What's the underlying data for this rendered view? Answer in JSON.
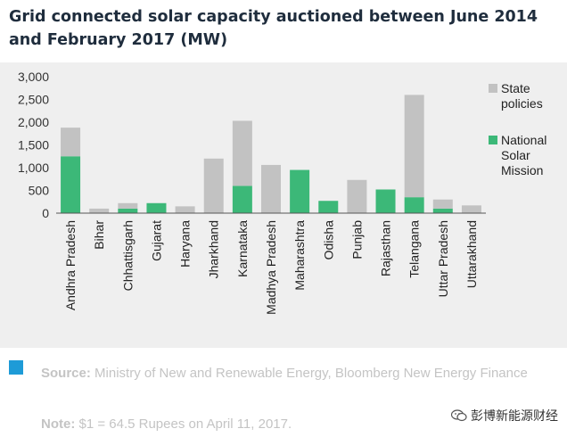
{
  "title": "Grid connected solar capacity auctioned between June 2014 and February 2017 (MW)",
  "legend": [
    {
      "name": "State policies",
      "color": "#c2c2c2"
    },
    {
      "name": "National Solar Mission",
      "color": "#3cb878"
    }
  ],
  "chart_data": {
    "type": "bar",
    "stacked": true,
    "categories": [
      "Andhra Pradesh",
      "Bihar",
      "Chhattisgarh",
      "Gujarat",
      "Haryana",
      "Jharkhand",
      "Karnataka",
      "Madhya Pradesh",
      "Maharashtra",
      "Odisha",
      "Punjab",
      "Rajasthan",
      "Telangana",
      "Uttar Pradesh",
      "Uttarakhand"
    ],
    "series": [
      {
        "name": "National Solar Mission",
        "color": "#3cb878",
        "values": [
          1250,
          0,
          100,
          220,
          0,
          0,
          600,
          0,
          950,
          270,
          0,
          520,
          350,
          100,
          0
        ]
      },
      {
        "name": "State policies",
        "color": "#c2c2c2",
        "values": [
          630,
          100,
          120,
          0,
          150,
          1200,
          1430,
          1060,
          0,
          0,
          730,
          0,
          2250,
          200,
          170
        ]
      }
    ],
    "ylim": [
      0,
      3000
    ],
    "yticks": [
      "0",
      "500",
      "1,000",
      "1,500",
      "2,000",
      "2,500",
      "3,000"
    ],
    "grid": false,
    "legend_position": "right"
  },
  "footer": {
    "source_label": "Source:",
    "source_text": " Ministry of New and Renewable Energy, Bloomberg New Energy Finance",
    "note_label": "Note:",
    "note_text": " $1 = 64.5 Rupees on April 11, 2017.",
    "accent_color": "#1e9bd7"
  },
  "watermark": {
    "text": "彭博新能源财经",
    "icon": "wechat-icon"
  }
}
